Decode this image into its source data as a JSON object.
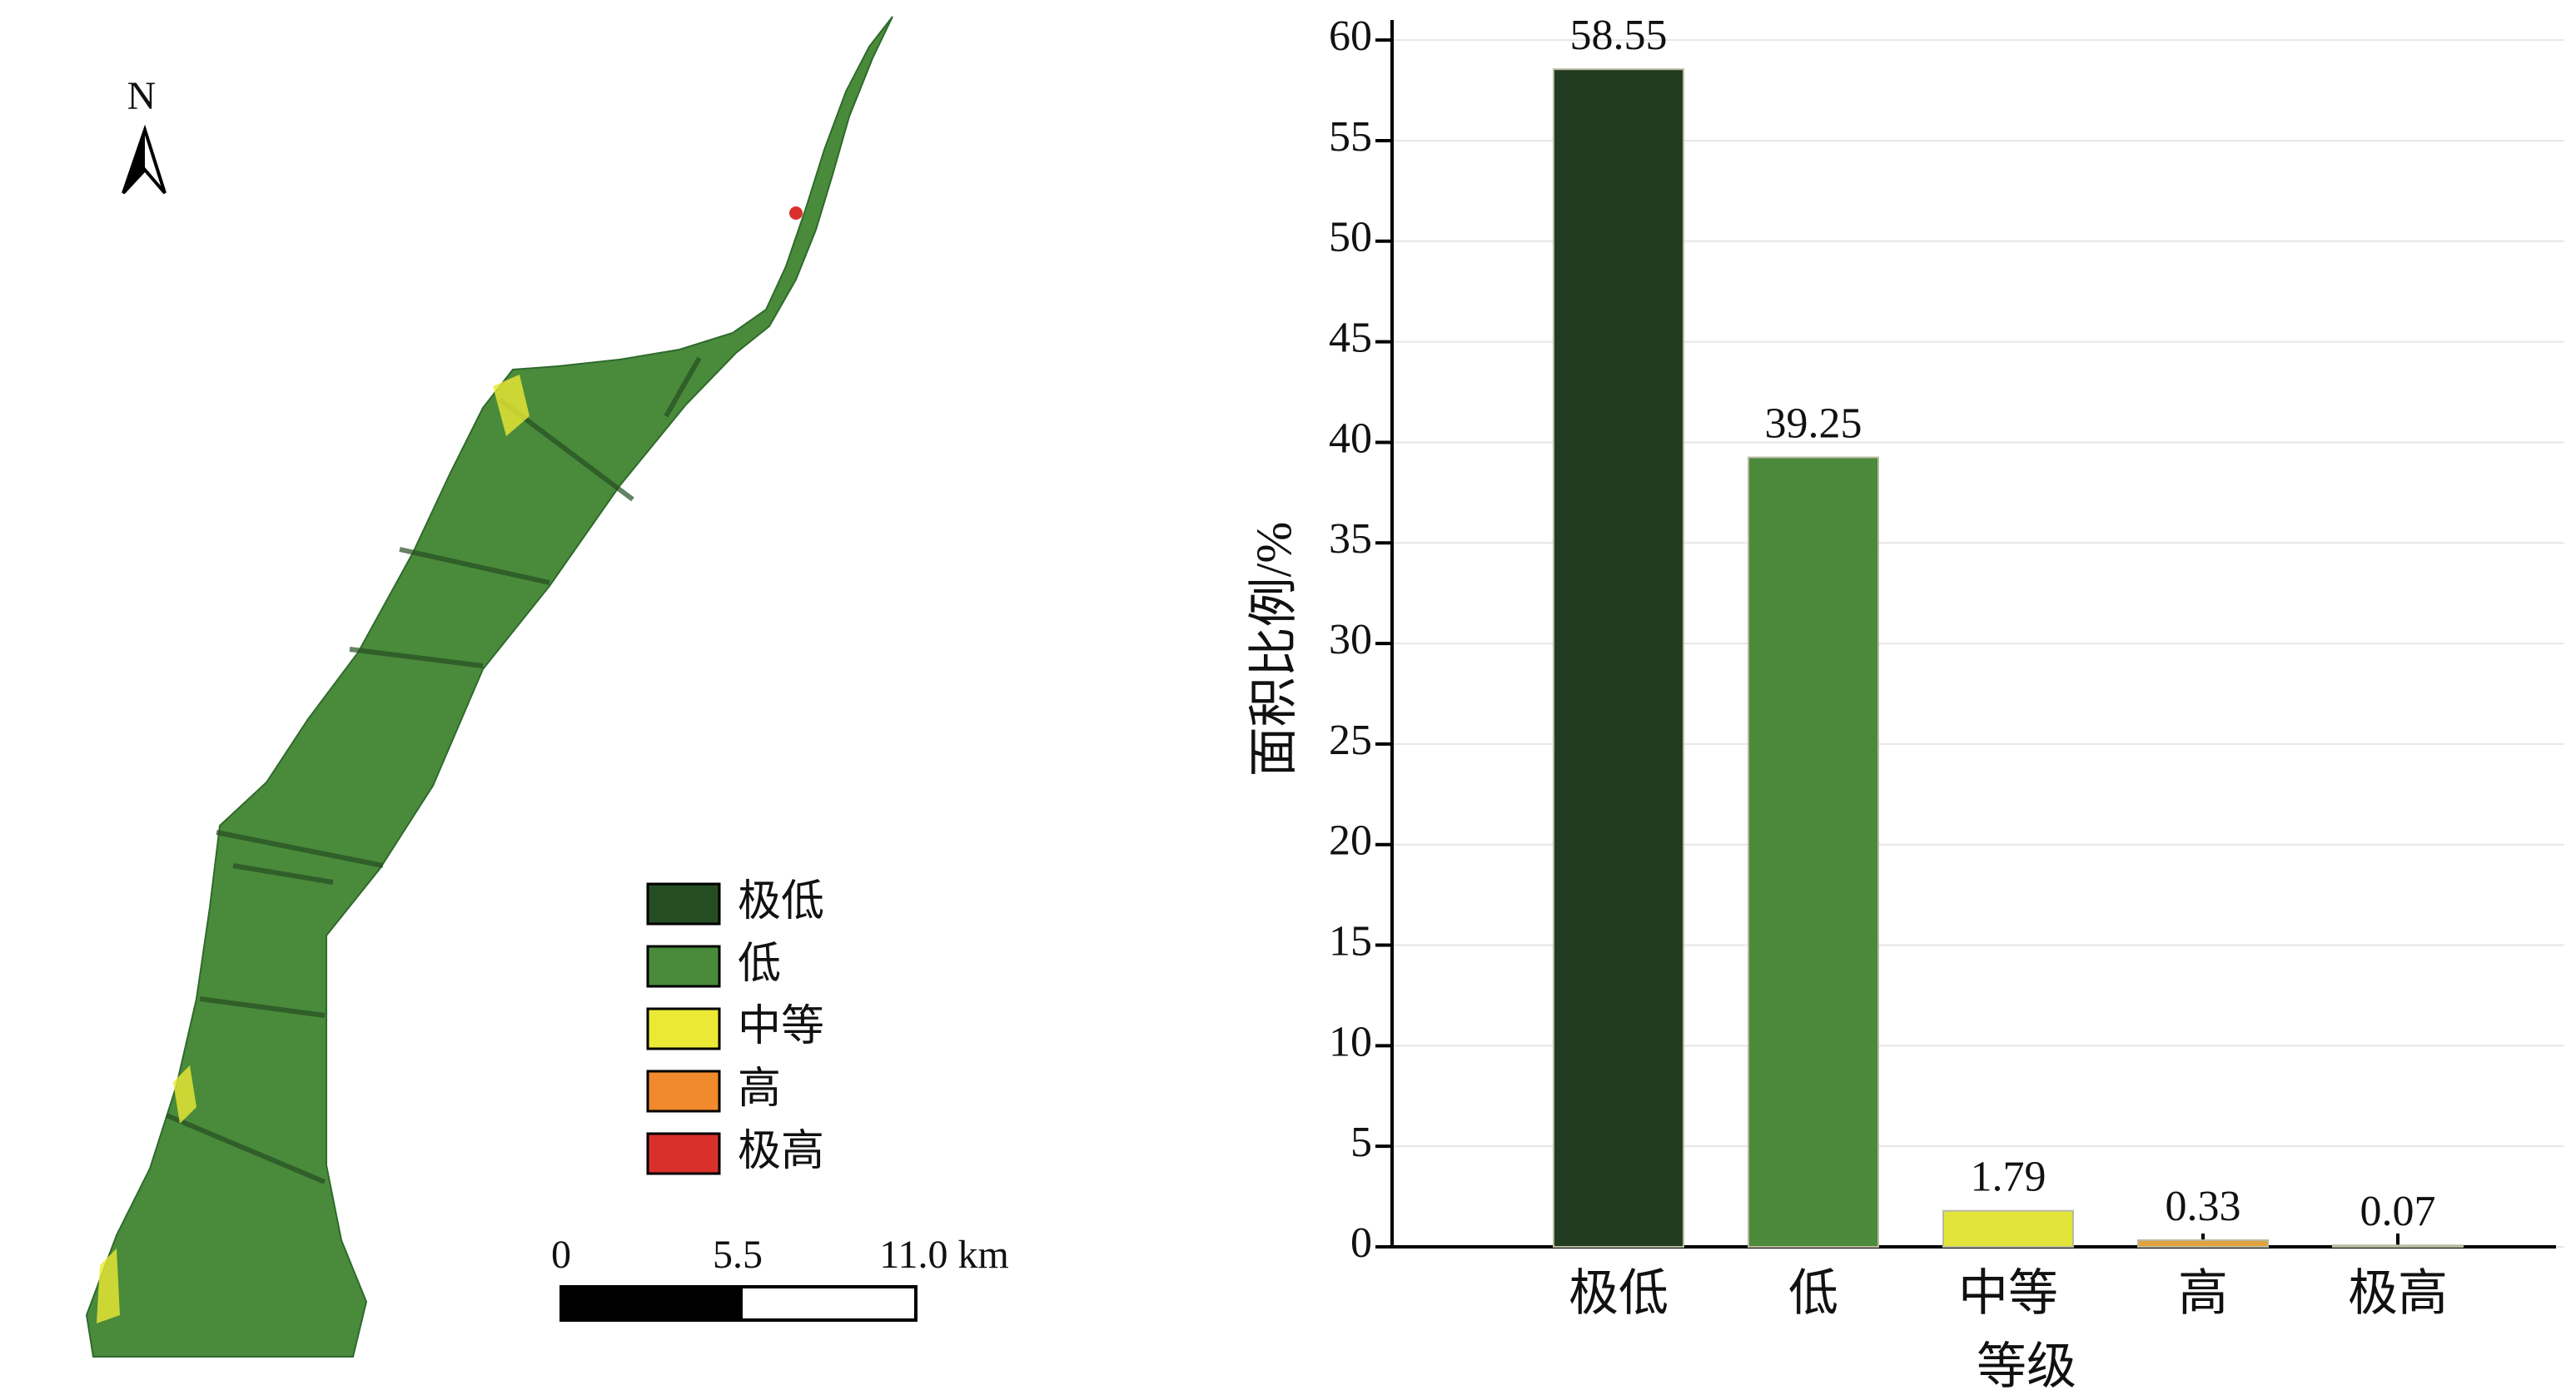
{
  "map": {
    "north": "N",
    "legend": [
      {
        "label": "极低",
        "color": "#254d24"
      },
      {
        "label": "低",
        "color": "#4a8b3b"
      },
      {
        "label": "中等",
        "color": "#ece935"
      },
      {
        "label": "高",
        "color": "#f08a2c"
      },
      {
        "label": "极高",
        "color": "#d9302c"
      }
    ],
    "scale_bar": [
      "0",
      "5.5",
      "11.0 km"
    ]
  },
  "chart_data": {
    "type": "bar",
    "xlabel": "等级",
    "ylabel": "面积比例/%",
    "categories": [
      "极低",
      "低",
      "中等",
      "高",
      "极高"
    ],
    "values": [
      58.55,
      39.25,
      1.79,
      0.33,
      0.07
    ],
    "colors": [
      "#213c21",
      "#4a8a3a",
      "#e2e43a",
      "#e3a23c",
      "#d63a3a"
    ],
    "ylim": [
      0,
      61
    ],
    "yticks": [
      0,
      5,
      10,
      15,
      20,
      25,
      30,
      35,
      40,
      45,
      50,
      55,
      60
    ],
    "grid": true
  }
}
